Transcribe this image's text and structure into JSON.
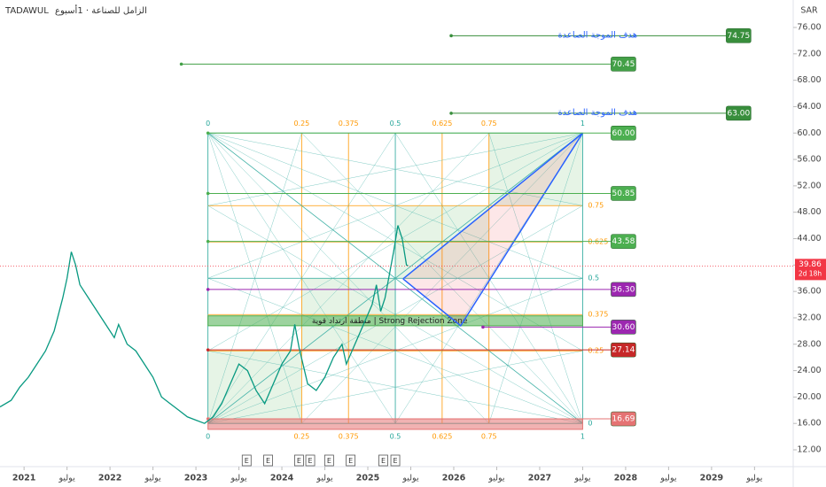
{
  "chart_data": {
    "type": "line",
    "symbol": "TADAWUL",
    "title": "الزامل للصناعة · 1أسبوع",
    "currency": "SAR",
    "xlim": [
      2020.72,
      2029.95
    ],
    "ylim": [
      9.72,
      80.16
    ],
    "xticks": [
      {
        "value": 2021,
        "label": "2021"
      },
      {
        "value": 2021.5,
        "label": "يوليو"
      },
      {
        "value": 2022,
        "label": "2022"
      },
      {
        "value": 2022.5,
        "label": "يوليو"
      },
      {
        "value": 2023,
        "label": "2023"
      },
      {
        "value": 2023.5,
        "label": "يوليو"
      },
      {
        "value": 2024,
        "label": "2024"
      },
      {
        "value": 2024.5,
        "label": "يوليو"
      },
      {
        "value": 2025,
        "label": "2025"
      },
      {
        "value": 2025.5,
        "label": "يوليو"
      },
      {
        "value": 2026,
        "label": "2026"
      },
      {
        "value": 2026.5,
        "label": "يوليو"
      },
      {
        "value": 2027,
        "label": "2027"
      },
      {
        "value": 2027.5,
        "label": "يوليو"
      },
      {
        "value": 2028,
        "label": "2028"
      },
      {
        "value": 2028.5,
        "label": "يوليو"
      },
      {
        "value": 2029,
        "label": "2029"
      },
      {
        "value": 2029.5,
        "label": "يوليو"
      }
    ],
    "yticks": [
      {
        "value": 12,
        "label": "12.00"
      },
      {
        "value": 16,
        "label": "16.00"
      },
      {
        "value": 20,
        "label": "20.00"
      },
      {
        "value": 24,
        "label": "24.00"
      },
      {
        "value": 28,
        "label": "28.00"
      },
      {
        "value": 32,
        "label": "32.00"
      },
      {
        "value": 36,
        "label": "36.00"
      },
      {
        "value": 40,
        "label": "40.00"
      },
      {
        "value": 44,
        "label": "44.00"
      },
      {
        "value": 48,
        "label": "48.00"
      },
      {
        "value": 52,
        "label": "52.00"
      },
      {
        "value": 56,
        "label": "56.00"
      },
      {
        "value": 60,
        "label": "60.00"
      },
      {
        "value": 64,
        "label": "64.00"
      },
      {
        "value": 68,
        "label": "68.00"
      },
      {
        "value": 72,
        "label": "72.00"
      },
      {
        "value": 76,
        "label": "76.00"
      }
    ],
    "series": [
      {
        "name": "TADAWUL",
        "color": "#089981",
        "x": [
          2020.72,
          2020.85,
          2020.95,
          2021.05,
          2021.15,
          2021.25,
          2021.35,
          2021.45,
          2021.5,
          2021.55,
          2021.6,
          2021.65,
          2021.75,
          2021.85,
          2021.95,
          2022.05,
          2022.1,
          2022.2,
          2022.3,
          2022.4,
          2022.5,
          2022.6,
          2022.7,
          2022.8,
          2022.9,
          2023.0,
          2023.1,
          2023.2,
          2023.3,
          2023.4,
          2023.5,
          2023.6,
          2023.7,
          2023.8,
          2023.9,
          2024.0,
          2024.1,
          2024.15,
          2024.2,
          2024.3,
          2024.4,
          2024.5,
          2024.6,
          2024.7,
          2024.75,
          2024.85,
          2024.95,
          2025.05,
          2025.1,
          2025.15,
          2025.2,
          2025.3,
          2025.35,
          2025.4,
          2025.45,
          2025.47
        ],
        "values": [
          18.5,
          19.5,
          21.5,
          23,
          25,
          27,
          30,
          35,
          38,
          42,
          40,
          37,
          35,
          33,
          31,
          29,
          31,
          28,
          27,
          25,
          23,
          20,
          19,
          18,
          17,
          16.5,
          16,
          17,
          19,
          22,
          25,
          24,
          21,
          19,
          22,
          25,
          27,
          31,
          27.5,
          22,
          21,
          23,
          26,
          28,
          25,
          28,
          31,
          34,
          37,
          33,
          35,
          42,
          46,
          44,
          40,
          39.86
        ]
      }
    ],
    "last_price": {
      "value": 39.86,
      "label": "39.86",
      "countdown": "2d 18h",
      "color": "#f23645"
    },
    "gann_box": {
      "x": [
        2023.14,
        2027.5
      ],
      "y": [
        16,
        60
      ],
      "levels": [
        0,
        0.25,
        0.375,
        0.5,
        0.625,
        0.75,
        1
      ]
    },
    "pattern": {
      "x": [
        2025.41,
        2027.5,
        2026.08,
        2025.41
      ],
      "y": [
        37.9,
        60,
        30.8,
        37.9
      ],
      "color": "#2962ff"
    },
    "zones": [
      {
        "label": "منطقة ارتداد قوية | Strong Rejection Zone",
        "y": [
          30.8,
          32.3
        ],
        "color": "#4caf50"
      },
      {
        "y": [
          15.1,
          16.69
        ],
        "color": "#e57373"
      }
    ],
    "levels": [
      {
        "value": 74.75,
        "label": "74.75",
        "x": [
          2025.97,
          2029.17
        ],
        "color": "#388e3c",
        "note": "هدف الموجة الصاعدة"
      },
      {
        "value": 70.45,
        "label": "70.45",
        "x": [
          2022.83,
          2027.83
        ],
        "color": "#43a047"
      },
      {
        "value": 63,
        "label": "63.00",
        "x": [
          2025.97,
          2029.17
        ],
        "color": "#388e3c",
        "note": "هدف الموجة الصاعدة"
      },
      {
        "value": 60,
        "label": "60.00",
        "x": [
          2023.14,
          2027.83
        ],
        "color": "#4caf50"
      },
      {
        "value": 50.85,
        "label": "50.85",
        "x": [
          2023.14,
          2027.83
        ],
        "color": "#4caf50"
      },
      {
        "value": 43.58,
        "label": "43.58",
        "x": [
          2023.14,
          2027.83
        ],
        "color": "#4caf50"
      },
      {
        "value": 36.3,
        "label": "36.30",
        "x": [
          2023.14,
          2027.83
        ],
        "color": "#9c27b0"
      },
      {
        "value": 30.6,
        "label": "30.60",
        "x": [
          2026.34,
          2027.83
        ],
        "color": "#9c27b0"
      },
      {
        "value": 27.14,
        "label": "27.14",
        "x": [
          2023.14,
          2027.83
        ],
        "color": "#c62828"
      },
      {
        "value": 16.69,
        "label": "16.69",
        "x": [
          2023.14,
          2027.83
        ],
        "color": "#e57373"
      }
    ],
    "events": [
      {
        "x": 2023.59,
        "label": "E"
      },
      {
        "x": 2023.84,
        "label": "E"
      },
      {
        "x": 2024.2,
        "label": "E"
      },
      {
        "x": 2024.33,
        "label": "E"
      },
      {
        "x": 2024.55,
        "label": "E"
      },
      {
        "x": 2024.8,
        "label": "E"
      },
      {
        "x": 2025.18,
        "label": "E"
      },
      {
        "x": 2025.32,
        "label": "E"
      }
    ]
  }
}
